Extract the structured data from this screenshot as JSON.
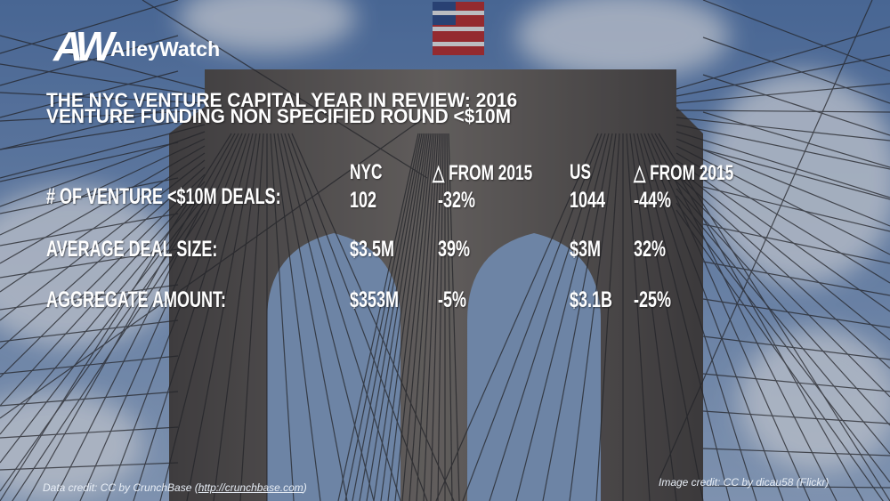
{
  "logo": {
    "mark": "AW",
    "name": "AlleyWatch"
  },
  "title": {
    "line1": "THE NYC VENTURE CAPITAL YEAR IN REVIEW: 2016",
    "line2": "VENTURE FUNDING NON SPECIFIED ROUND <$10M"
  },
  "table": {
    "header": [
      "NYC",
      "△ FROM 2015",
      "US",
      "△ FROM 2015"
    ],
    "rows": [
      {
        "label": "# OF VENTURE <$10M DEALS:",
        "cells": [
          "102",
          "-32%",
          "1044",
          "-44%"
        ]
      },
      {
        "label": "AVERAGE DEAL SIZE:",
        "cells": [
          "$3.5M",
          "39%",
          "$3M",
          "32%"
        ]
      },
      {
        "label": "AGGREGATE AMOUNT:",
        "cells": [
          "$353M",
          "-5%",
          "$3.1B",
          "-25%"
        ]
      }
    ]
  },
  "credits": {
    "data_prefix": "Data credit: CC by CrunchBase (",
    "data_link": "http://crunchbase.com",
    "data_suffix": ")",
    "image": "Image credit: CC by dicau58 (Flickr)"
  }
}
